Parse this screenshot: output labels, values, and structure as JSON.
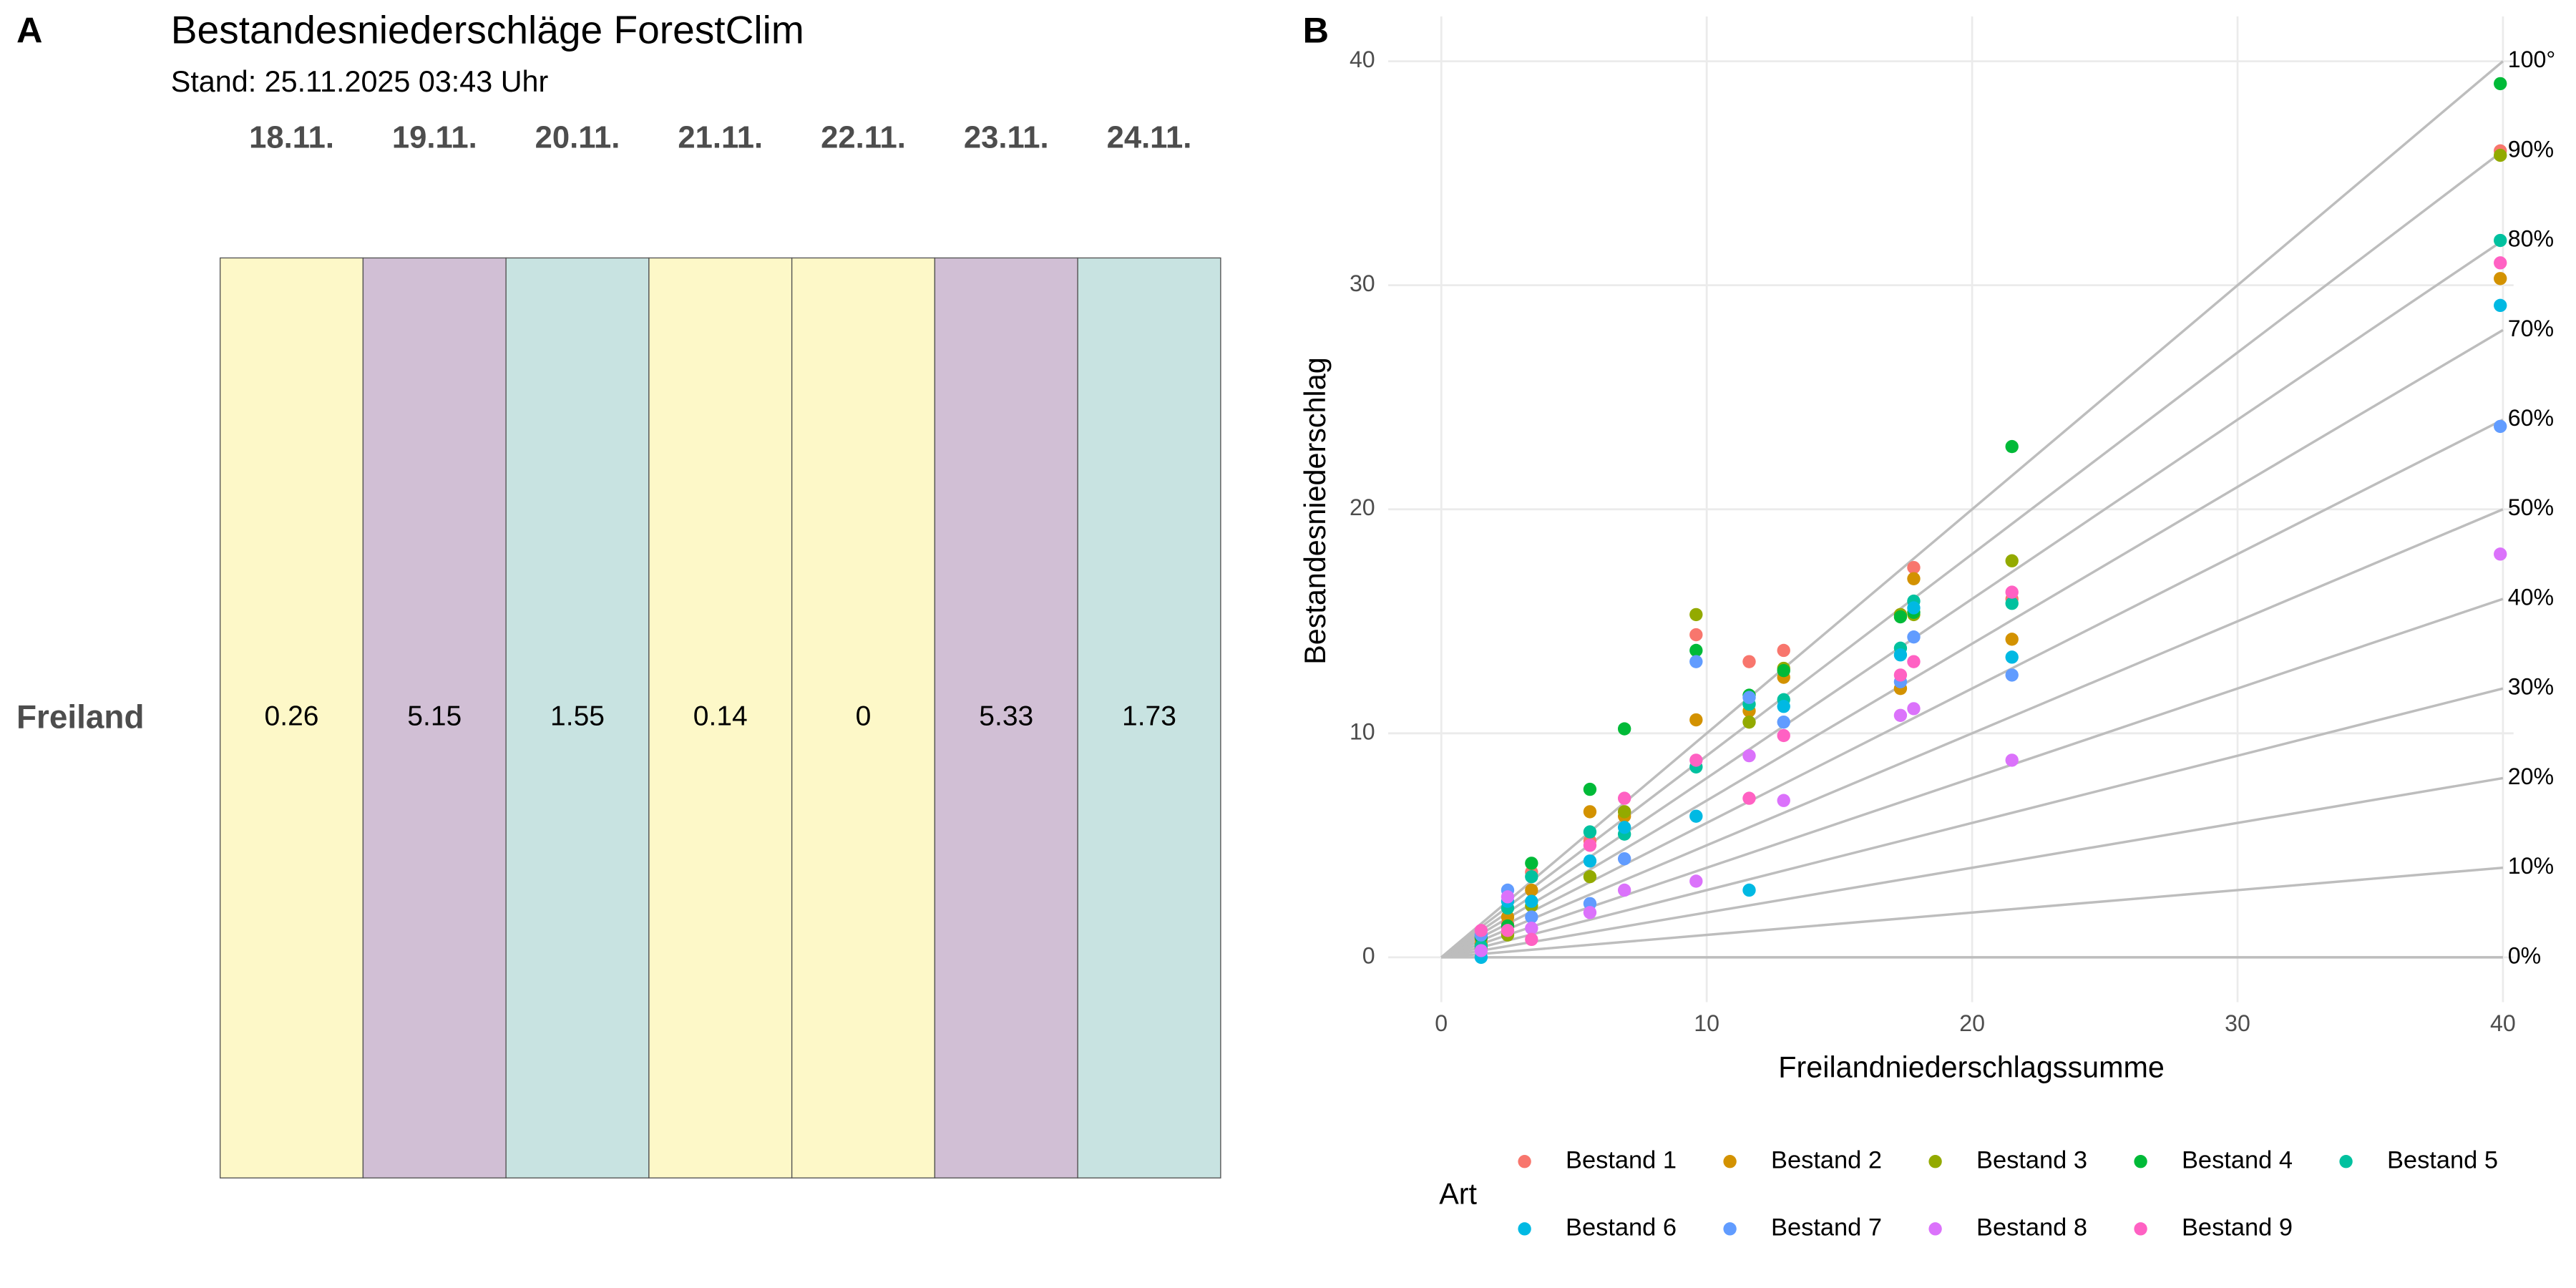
{
  "chart_data": [
    {
      "type": "tile",
      "panel_label": "A",
      "title": "Bestandesniederschläge ForestClim",
      "subtitle": "Stand: 25.11.2025 03:43 Uhr",
      "categories": [
        "18.11.",
        "19.11.",
        "20.11.",
        "21.11.",
        "22.11.",
        "23.11.",
        "24.11."
      ],
      "row_label": "Freiland",
      "values": [
        0.26,
        5.15,
        1.55,
        0.14,
        0,
        5.33,
        1.73
      ],
      "colors": [
        "#fdf8c8",
        "#d1bfd5",
        "#c8e3e1",
        "#fdf8c8",
        "#fdf8c8",
        "#d1bfd5",
        "#c8e3e1"
      ]
    },
    {
      "type": "scatter",
      "panel_label": "B",
      "x_label": "Freilandniederschlagssumme",
      "y_label": "Bestandesniederschlag",
      "legend_title": "Art",
      "legend": "bottom",
      "grid": true,
      "xlim": [
        -2,
        40.4
      ],
      "ylim": [
        -2,
        42
      ],
      "xticks": [
        0,
        10,
        20,
        30,
        40
      ],
      "yticks": [
        0,
        10,
        20,
        30,
        40
      ],
      "ref_lines": [
        {
          "value": 0,
          "label": "0%"
        },
        {
          "value": 10,
          "label": "10%"
        },
        {
          "value": 20,
          "label": "20%"
        },
        {
          "value": 30,
          "label": "30%"
        },
        {
          "value": 40,
          "label": "40%"
        },
        {
          "value": 50,
          "label": "50%"
        },
        {
          "value": 60,
          "label": "60%"
        },
        {
          "value": 70,
          "label": "70%"
        },
        {
          "value": 80,
          "label": "80%"
        },
        {
          "value": 90,
          "label": "90%"
        },
        {
          "value": 100,
          "label": "100°"
        }
      ],
      "x": [
        1.5,
        2.5,
        3.4,
        5.6,
        6.9,
        9.6,
        11.6,
        12.9,
        17.3,
        17.8,
        21.5,
        39.9
      ],
      "series": [
        {
          "name": "Bestand 1",
          "color": "#F8766D",
          "values": [
            0.8,
            1.5,
            3.8,
            5.2,
            6.5,
            14.4,
            13.2,
            13.7,
            15.3,
            17.4,
            16.0,
            36.0
          ]
        },
        {
          "name": "Bestand 2",
          "color": "#D39200",
          "values": [
            0.6,
            1.8,
            3.0,
            6.5,
            6.3,
            10.6,
            11.0,
            12.5,
            12.0,
            16.9,
            14.2,
            30.3
          ]
        },
        {
          "name": "Bestand 3",
          "color": "#93AA00",
          "values": [
            0.4,
            1.0,
            2.3,
            3.6,
            6.5,
            15.3,
            10.5,
            12.9,
            15.3,
            15.3,
            17.7,
            35.8
          ]
        },
        {
          "name": "Bestand 4",
          "color": "#00BA38",
          "values": [
            0.9,
            1.4,
            4.2,
            7.5,
            10.2,
            13.7,
            11.7,
            12.8,
            15.2,
            15.4,
            22.8,
            39.0
          ]
        },
        {
          "name": "Bestand 5",
          "color": "#00C19F",
          "values": [
            0.5,
            2.2,
            3.6,
            5.6,
            5.5,
            8.5,
            11.3,
            11.5,
            13.8,
            15.9,
            15.8,
            32.0
          ]
        },
        {
          "name": "Bestand 6",
          "color": "#00B9E3",
          "values": [
            0.0,
            2.5,
            2.5,
            4.3,
            5.8,
            6.3,
            3.0,
            11.2,
            13.5,
            15.6,
            13.4,
            29.1
          ]
        },
        {
          "name": "Bestand 7",
          "color": "#619CFF",
          "values": [
            1.0,
            3.0,
            1.8,
            2.4,
            4.4,
            13.2,
            11.6,
            10.5,
            12.3,
            14.3,
            12.6,
            23.7
          ]
        },
        {
          "name": "Bestand 8",
          "color": "#DB72FB",
          "values": [
            0.3,
            2.7,
            1.3,
            2.0,
            3.0,
            3.4,
            9.0,
            7.0,
            10.8,
            11.1,
            8.8,
            18.0
          ]
        },
        {
          "name": "Bestand 9",
          "color": "#FF61C3",
          "values": [
            1.2,
            1.2,
            0.8,
            5.0,
            7.1,
            8.8,
            7.1,
            9.9,
            12.6,
            13.2,
            16.3,
            31.0
          ]
        }
      ]
    }
  ]
}
